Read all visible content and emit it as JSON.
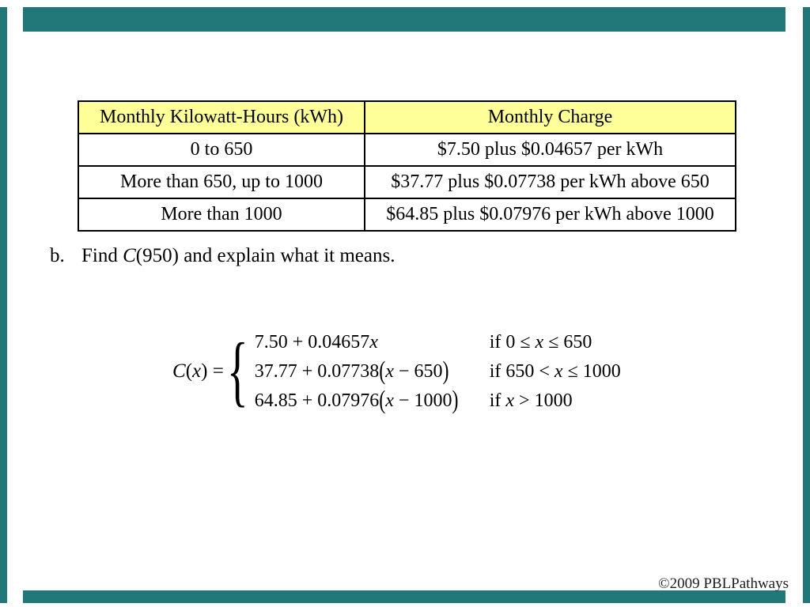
{
  "colors": {
    "frame": "#227878",
    "table_header_bg": "#FFFF99",
    "border": "#000000"
  },
  "table": {
    "headers": [
      "Monthly Kilowatt-Hours (kWh)",
      "Monthly Charge"
    ],
    "rows": [
      [
        "0 to 650",
        "$7.50 plus $0.04657 per kWh"
      ],
      [
        "More than 650, up to 1000",
        "$37.77 plus $0.07738 per kWh above 650"
      ],
      [
        "More than 1000",
        "$64.85 plus $0.07976 per kWh above 1000"
      ]
    ]
  },
  "problem": {
    "label": "b.",
    "pre": "Find ",
    "func": "C",
    "post": "(950) and explain what it means."
  },
  "formula": {
    "lhs": {
      "c": "C",
      "open": "(",
      "x": "x",
      "close": ") = "
    },
    "brace": "{",
    "rows": [
      {
        "expr": {
          "pre": "7.50 + 0.04657",
          "var": "x",
          "post": ""
        },
        "cond": {
          "pre": "if 0 ≤ ",
          "var": "x",
          "post": " ≤ 650"
        }
      },
      {
        "expr": {
          "pre": "37.77 + 0.07738",
          "open": "(",
          "var": "x",
          "post": " − 650",
          "close": ")"
        },
        "cond": {
          "pre": "if 650 < ",
          "var": "x",
          "post": " ≤ 1000"
        }
      },
      {
        "expr": {
          "pre": "64.85 + 0.07976",
          "open": "(",
          "var": "x",
          "post": " − 1000",
          "close": ")"
        },
        "cond": {
          "pre": "if ",
          "var": "x",
          "post": " > 1000"
        }
      }
    ]
  },
  "footer": {
    "copyright": "©2009 PBLPathways"
  }
}
